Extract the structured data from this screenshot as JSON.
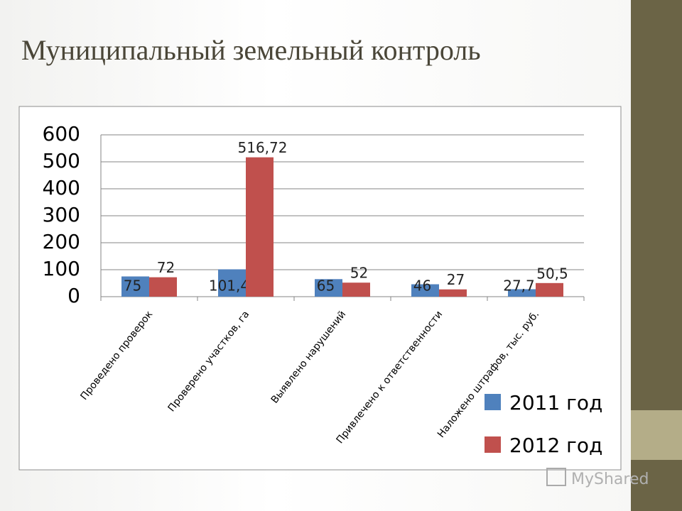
{
  "title": "Муниципальный земельный контроль",
  "watermark": "MyShared",
  "chart_data": {
    "type": "bar",
    "categories": [
      "Проведено проверок",
      "Проверено участков, га",
      "Выявлено нарушений",
      "Привлечено к ответственности",
      "Наложено штрафов, тыс. руб."
    ],
    "series": [
      {
        "name": "2011 год",
        "color": "#4f81bd",
        "values": [
          75,
          101.4,
          65,
          46,
          27.7
        ],
        "value_labels": [
          "75",
          "101,4",
          "65",
          "46",
          "27,7"
        ]
      },
      {
        "name": "2012 год",
        "color": "#c0504d",
        "values": [
          72,
          516.72,
          52,
          27,
          50.5
        ],
        "value_labels": [
          "72",
          "516,72",
          "52",
          "27",
          "50,5"
        ]
      }
    ],
    "ylim": [
      0,
      600
    ],
    "yticks": [
      0,
      100,
      200,
      300,
      400,
      500,
      600
    ],
    "grid": true,
    "legend": "right"
  }
}
